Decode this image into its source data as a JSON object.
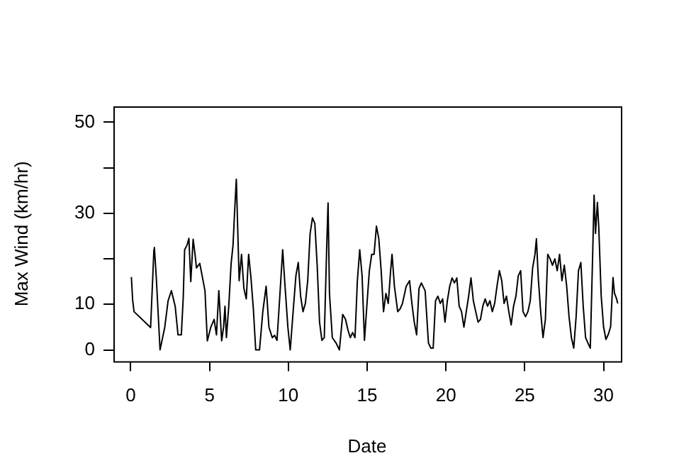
{
  "chart_data": {
    "type": "line",
    "xlabel": "Date",
    "ylabel": "Max Wind (km/hr)",
    "x": [
      0.04,
      0.12,
      0.21,
      1.26,
      1.47,
      1.5,
      1.62,
      1.86,
      2.16,
      2.37,
      2.58,
      2.82,
      3.0,
      3.21,
      3.33,
      3.42,
      3.57,
      3.69,
      3.81,
      3.96,
      4.08,
      4.17,
      4.38,
      4.53,
      4.71,
      4.86,
      5.08,
      5.29,
      5.44,
      5.59,
      5.77,
      5.89,
      5.98,
      6.07,
      6.22,
      6.37,
      6.49,
      6.6,
      6.7,
      6.88,
      7.03,
      7.18,
      7.33,
      7.48,
      7.63,
      7.78,
      7.93,
      8.17,
      8.38,
      8.59,
      8.77,
      8.98,
      9.13,
      9.28,
      9.43,
      9.64,
      9.79,
      9.97,
      10.12,
      10.33,
      10.48,
      10.63,
      10.78,
      10.93,
      11.08,
      11.23,
      11.38,
      11.53,
      11.68,
      11.83,
      11.98,
      12.13,
      12.28,
      12.43,
      12.52,
      12.61,
      12.79,
      13.03,
      13.24,
      13.45,
      13.63,
      13.78,
      13.93,
      14.08,
      14.23,
      14.38,
      14.53,
      14.68,
      14.83,
      14.98,
      15.14,
      15.29,
      15.44,
      15.59,
      15.74,
      15.89,
      16.04,
      16.19,
      16.34,
      16.49,
      16.58,
      16.73,
      16.94,
      17.09,
      17.24,
      17.48,
      17.69,
      17.84,
      17.99,
      18.14,
      18.29,
      18.44,
      18.68,
      18.89,
      19.04,
      19.19,
      19.34,
      19.49,
      19.64,
      19.79,
      19.94,
      20.09,
      20.24,
      20.39,
      20.54,
      20.69,
      20.84,
      20.99,
      21.14,
      21.29,
      21.44,
      21.59,
      21.74,
      21.89,
      22.04,
      22.19,
      22.34,
      22.49,
      22.64,
      22.79,
      22.94,
      23.09,
      23.24,
      23.39,
      23.54,
      23.69,
      23.84,
      23.99,
      24.14,
      24.29,
      24.44,
      24.59,
      24.74,
      24.89,
      25.05,
      25.2,
      25.35,
      25.5,
      25.65,
      25.74,
      25.86,
      26.01,
      26.16,
      26.31,
      26.46,
      26.61,
      26.76,
      26.91,
      27.06,
      27.21,
      27.36,
      27.51,
      27.66,
      27.81,
      27.96,
      28.11,
      28.26,
      28.41,
      28.56,
      28.71,
      28.86,
      29.01,
      29.16,
      29.31,
      29.4,
      29.49,
      29.61,
      29.7,
      29.85,
      30.0,
      30.15,
      30.3,
      30.45,
      30.6,
      30.69,
      30.81,
      30.9
    ],
    "values": [
      16,
      11,
      8.4,
      4.9,
      22,
      22.5,
      16,
      0,
      5,
      10.8,
      13,
      9.6,
      3.3,
      3.3,
      11.4,
      22,
      23,
      24.5,
      15,
      24.3,
      21,
      18,
      19,
      16.3,
      13,
      2,
      5,
      6.7,
      3.3,
      13,
      2,
      5,
      9.6,
      2.7,
      9.6,
      19,
      23,
      31,
      37.5,
      15.2,
      21,
      13.5,
      11.2,
      21,
      15.8,
      9,
      0,
      0,
      8.4,
      14,
      5,
      2.7,
      3.2,
      2.1,
      10.2,
      22,
      14,
      5,
      0,
      9.6,
      16.3,
      19.2,
      11.8,
      8.4,
      10.2,
      15.2,
      25.5,
      29,
      27.8,
      18.6,
      6.1,
      2.1,
      2.7,
      22,
      32.3,
      12.4,
      2.7,
      1.5,
      0,
      7.8,
      6.7,
      4.4,
      2.7,
      3.8,
      2.7,
      15.2,
      22,
      16.3,
      2.1,
      9.6,
      17.4,
      21,
      21,
      27.2,
      24.4,
      17.4,
      8.4,
      12.4,
      10.2,
      17.4,
      21,
      14,
      8.4,
      9,
      10.2,
      14,
      15.2,
      10.2,
      6.1,
      3.3,
      13.5,
      14.7,
      13,
      1.5,
      0.4,
      0.4,
      10.8,
      11.8,
      10.2,
      11.2,
      6.1,
      10.8,
      14,
      15.8,
      14.7,
      15.8,
      9.6,
      8.4,
      5,
      8.4,
      11.8,
      15.8,
      10.8,
      8.4,
      6.1,
      6.7,
      9.6,
      11.2,
      9.6,
      10.8,
      8.4,
      10.2,
      14,
      17.4,
      15.2,
      10.2,
      11.8,
      8.4,
      5.5,
      9.6,
      11.8,
      16.3,
      17.4,
      8.4,
      7.3,
      8.4,
      10.8,
      18,
      21,
      24.4,
      15.8,
      8.4,
      2.7,
      6.7,
      21,
      20,
      18.6,
      20,
      17.4,
      21,
      15.2,
      18.6,
      14,
      7.3,
      2.7,
      0.4,
      7.3,
      17.4,
      19.2,
      9.6,
      2.7,
      1.5,
      0.4,
      21,
      34,
      25.6,
      32.4,
      26.7,
      11.9,
      5.1,
      2.3,
      3.4,
      5.1,
      15.9,
      12.5,
      11.4,
      10.2
    ],
    "color": "#000000",
    "xlim": [
      -1.1,
      31.1
    ],
    "ylim": [
      -2.5,
      53.5
    ],
    "xticks": [
      0,
      5,
      10,
      15,
      20,
      25,
      30
    ],
    "yticks": [
      0,
      10,
      {
        "value": 20,
        "label": null
      },
      30,
      {
        "value": 40,
        "label": null
      },
      50
    ],
    "grid": false,
    "legend": false,
    "marker": "none",
    "line_style": "solid"
  }
}
